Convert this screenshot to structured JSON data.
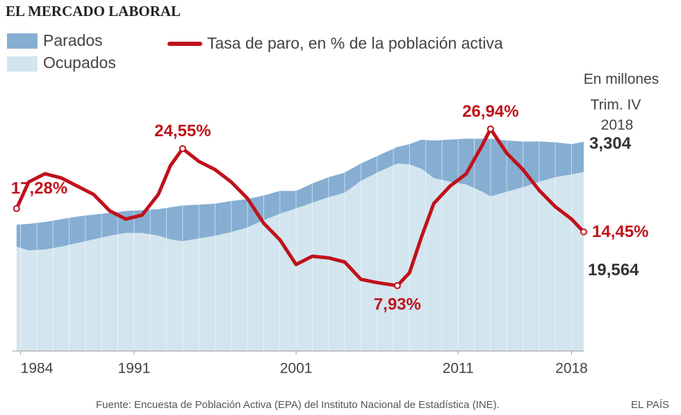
{
  "chart_data": {
    "type": "stacked-area-line",
    "title": "EL MERCADO LABORAL",
    "units_note": [
      "En millones",
      "Trim. IV",
      "2018"
    ],
    "source": "Fuente: Encuesta de Población Activa (EPA) del Instituto Nacional de Estadística (INE).",
    "brand": "EL PAÍS",
    "x": [
      1983.75,
      1984.5,
      1985.5,
      1986.5,
      1987.5,
      1988.5,
      1989.5,
      1990.5,
      1991.5,
      1992.5,
      1993.25,
      1994.0,
      1995.0,
      1996.0,
      1997.0,
      1998.0,
      1999.0,
      2000.0,
      2001.0,
      2002.0,
      2003.0,
      2004.0,
      2005.0,
      2006.0,
      2007.25,
      2008.0,
      2008.75,
      2009.5,
      2010.5,
      2011.5,
      2012.5,
      2013.0,
      2014.0,
      2015.0,
      2016.0,
      2017.0,
      2018.0,
      2018.75
    ],
    "xlim": [
      1983.5,
      2018.75
    ],
    "xticks": [
      1984,
      1991,
      2001,
      2011,
      2018
    ],
    "ylim": [
      0,
      30
    ],
    "y2lim": [
      0,
      33.3
    ],
    "series": [
      {
        "name": "Parados",
        "color": "#86aed2",
        "values": [
          2.4,
          2.9,
          3.0,
          3.0,
          2.9,
          2.7,
          2.5,
          2.4,
          2.5,
          2.9,
          3.5,
          3.9,
          3.7,
          3.5,
          3.4,
          3.1,
          2.7,
          2.5,
          1.9,
          2.1,
          2.2,
          2.2,
          1.9,
          1.8,
          1.8,
          2.2,
          3.2,
          4.1,
          4.6,
          5.0,
          5.8,
          6.3,
          5.6,
          5.0,
          4.4,
          3.8,
          3.3,
          3.304
        ],
        "value_labels": [
          null,
          null,
          null,
          null,
          null,
          null,
          null,
          null,
          null,
          null,
          null,
          null,
          null,
          null,
          null,
          null,
          null,
          null,
          null,
          null,
          null,
          null,
          null,
          null,
          null,
          null,
          null,
          null,
          null,
          null,
          null,
          null,
          null,
          null,
          null,
          null,
          null,
          "3,304"
        ]
      },
      {
        "name": "Ocupados",
        "color": "#d3e5ee",
        "values": [
          11.4,
          11.0,
          11.1,
          11.4,
          11.8,
          12.2,
          12.6,
          12.9,
          12.9,
          12.6,
          12.2,
          12.0,
          12.3,
          12.6,
          13.0,
          13.5,
          14.3,
          15.0,
          15.6,
          16.2,
          16.8,
          17.3,
          18.6,
          19.5,
          20.5,
          20.4,
          19.9,
          18.9,
          18.5,
          18.2,
          17.4,
          16.9,
          17.4,
          17.9,
          18.5,
          19.0,
          19.3,
          19.564
        ],
        "value_labels": [
          null,
          null,
          null,
          null,
          null,
          null,
          null,
          null,
          null,
          null,
          null,
          null,
          null,
          null,
          null,
          null,
          null,
          null,
          null,
          null,
          null,
          null,
          null,
          null,
          null,
          null,
          null,
          null,
          null,
          null,
          null,
          null,
          null,
          null,
          null,
          null,
          null,
          "19,564"
        ]
      },
      {
        "name": "Tasa de paro, en % de la población activa",
        "color": "#c0121b",
        "axis": "y2",
        "values": [
          17.28,
          20.5,
          21.5,
          21.0,
          20.0,
          19.0,
          17.0,
          16.0,
          16.5,
          19.0,
          22.5,
          24.55,
          23.0,
          22.0,
          20.5,
          18.5,
          15.5,
          13.5,
          10.5,
          11.5,
          11.3,
          10.8,
          8.7,
          8.3,
          7.93,
          9.5,
          13.9,
          17.9,
          20.0,
          21.5,
          25.0,
          26.94,
          24.0,
          22.0,
          19.5,
          17.5,
          16.0,
          14.45
        ],
        "value_labels": [
          "17,28%",
          null,
          null,
          null,
          null,
          null,
          null,
          null,
          null,
          null,
          null,
          "24,55%",
          null,
          null,
          null,
          null,
          null,
          null,
          null,
          null,
          null,
          null,
          null,
          null,
          "7,93%",
          null,
          null,
          null,
          null,
          null,
          null,
          "26,94%",
          null,
          null,
          null,
          null,
          null,
          "14,45%"
        ]
      }
    ]
  }
}
